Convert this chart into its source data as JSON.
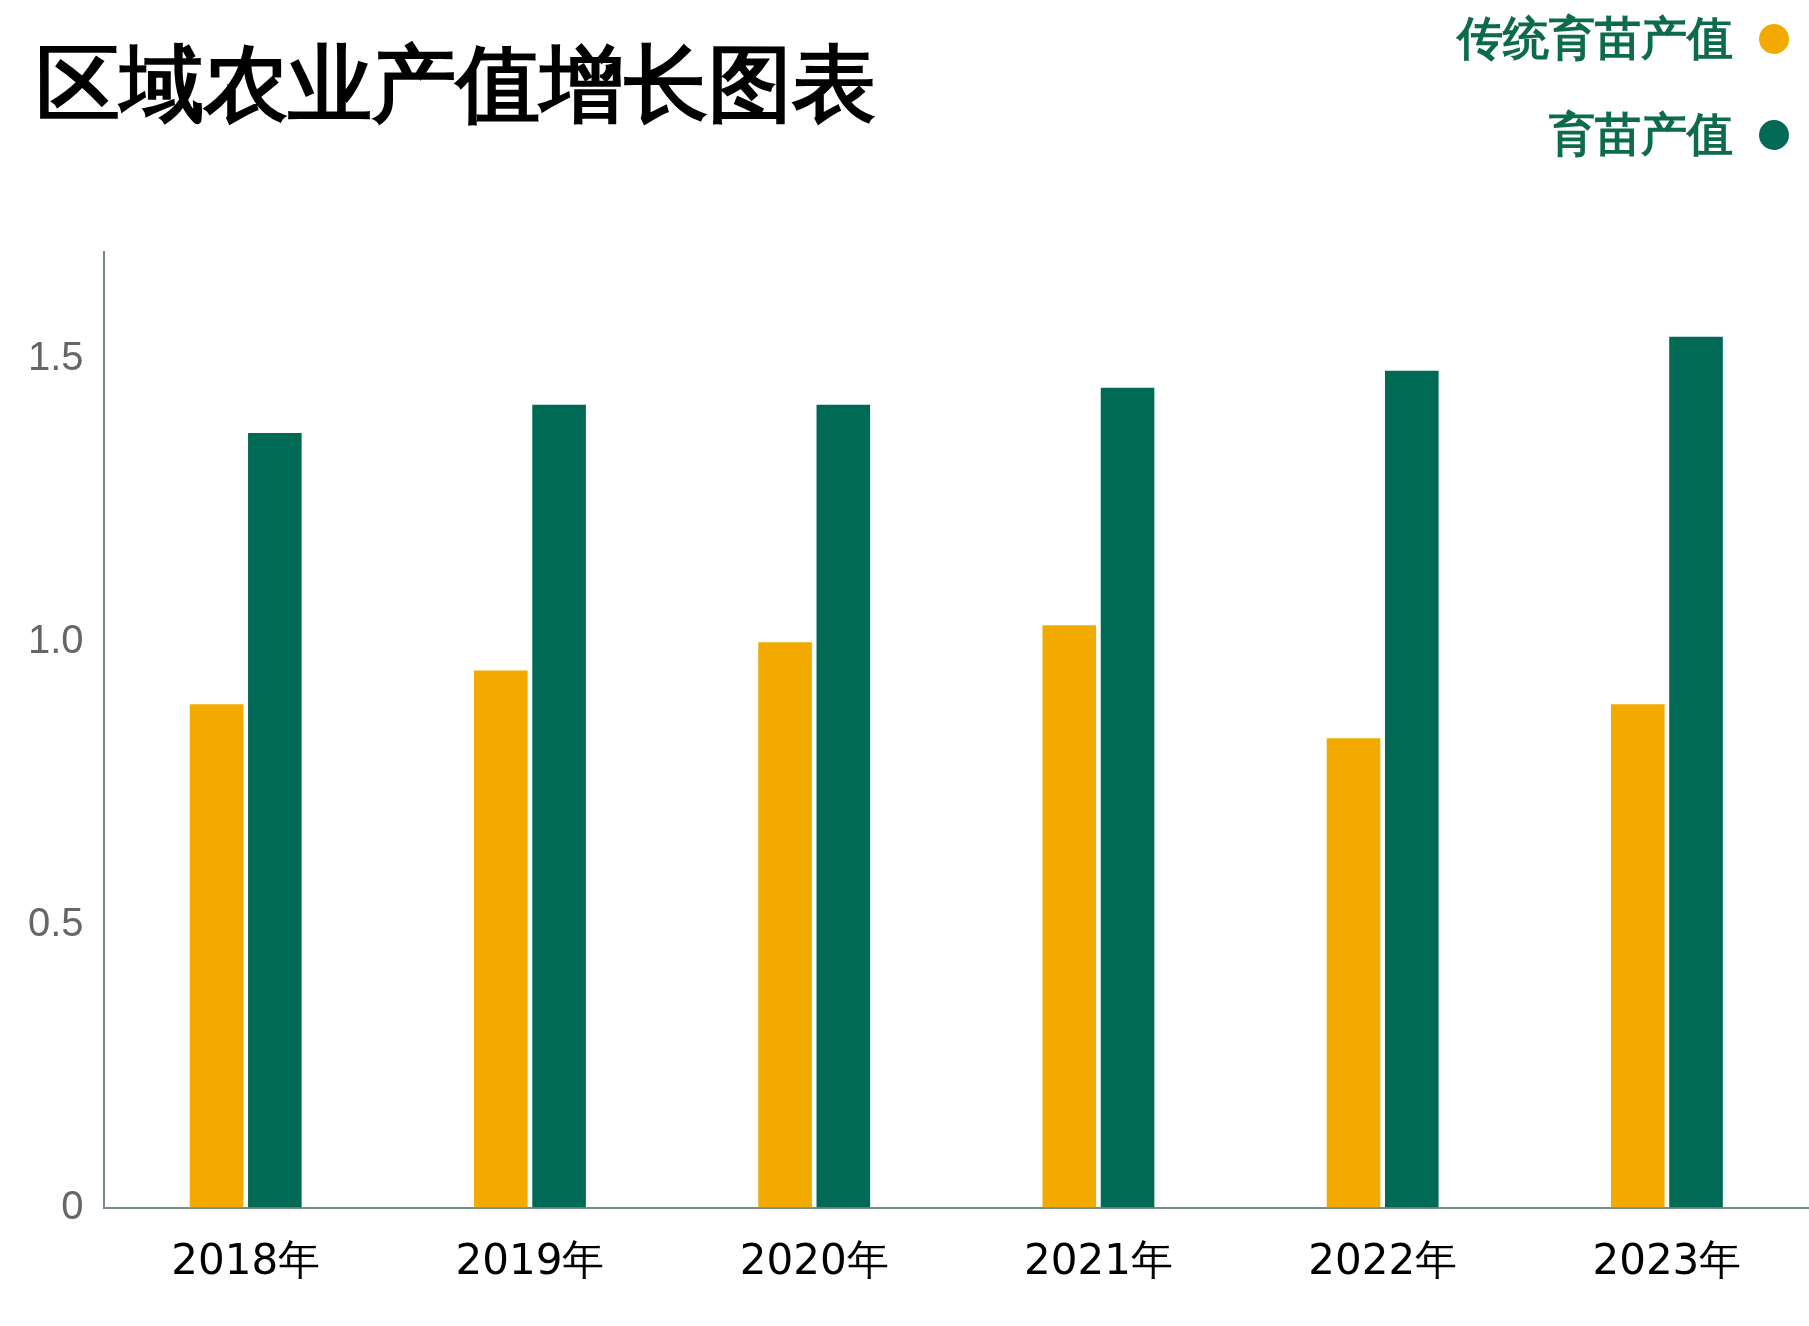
{
  "chart_data": {
    "type": "bar",
    "title": "区域农业产值增长图表",
    "categories": [
      "2018年",
      "2019年",
      "2020年",
      "2021年",
      "2022年",
      "2023年"
    ],
    "series": [
      {
        "name": "传统育苗产值",
        "color": "#f2a900",
        "values": [
          0.89,
          0.95,
          1.0,
          1.03,
          0.83,
          0.89
        ]
      },
      {
        "name": "育苗产值",
        "color": "#006a55",
        "values": [
          1.37,
          1.42,
          1.42,
          1.45,
          1.48,
          1.54
        ]
      }
    ],
    "ylim": [
      0,
      1.69
    ],
    "yticks": [
      0,
      0.5,
      {
        "value": 1,
        "label": "1.0"
      },
      1.5
    ],
    "grid": false,
    "legend": "top right"
  }
}
